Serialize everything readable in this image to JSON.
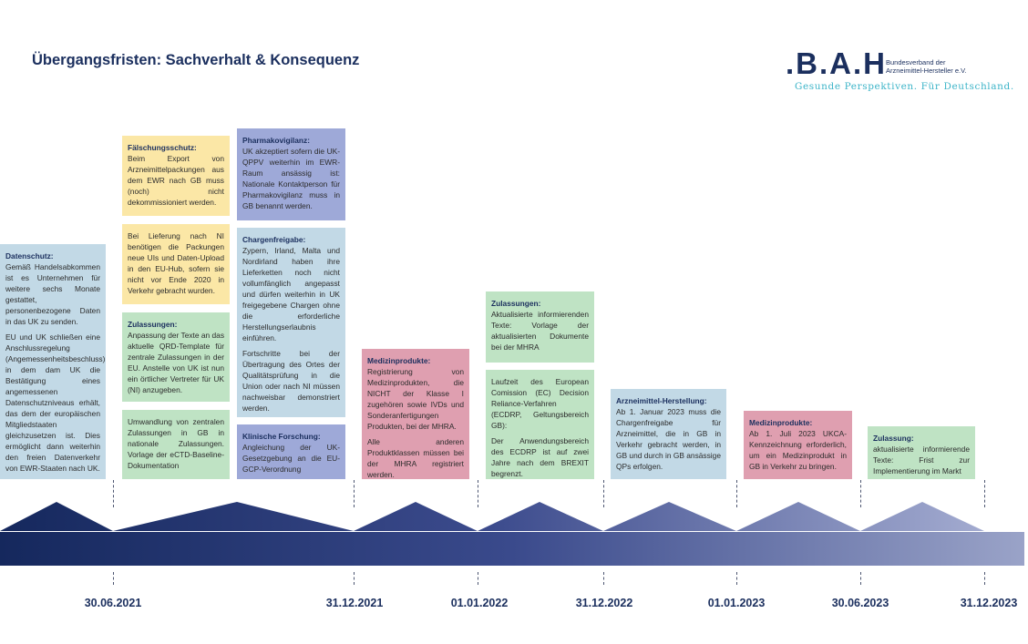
{
  "title": "Übergangsfristen: Sachverhalt & Konsequenz",
  "logo": {
    "mark": ".B.A.H",
    "org_line1": "Bundesverband der",
    "org_line2": "Arzneimittel-Hersteller e.V.",
    "claim": "Gesunde Perspektiven. Für Deutschland."
  },
  "boxes": {
    "datenschutz": {
      "heading": "Datenschutz:",
      "p1": "Gemäß Handelsabkommen ist es Unternehmen für weitere sechs Monate gestattet, personenbezogene Daten in das UK zu senden.",
      "p2": "EU und UK schließen eine Anschlussregelung (Angemessenheitsbeschluss), in dem dam UK die Bestätigung eines angemessenen Datenschutzniveaus erhält, das dem der europäischen Mitgliedstaaten gleichzusetzen ist. Dies ermöglicht dann weiterhin den freien Datenverkehr von EWR-Staaten nach UK."
    },
    "faelschungsschutz": {
      "heading": "Fälschungsschutz:",
      "p1": "Beim Export von Arzneimittelpackungen aus dem EWR nach GB muss (noch) nicht dekommissioniert werden."
    },
    "lieferung_ni": {
      "p1": "Bei Lieferung nach NI benötigen die Packungen neue UIs und Daten-Upload in den EU-Hub, sofern sie nicht vor Ende 2020 in Verkehr gebracht wurden."
    },
    "zulassungen_2021": {
      "heading": "Zulassungen:",
      "p1": "Anpassung der Texte an das aktuelle QRD-Template für zentrale Zulassungen in der EU. Anstelle von UK ist nun ein örtlicher Vertreter für UK (NI) anzugeben."
    },
    "umwandlung": {
      "p1": "Umwandlung von zentralen Zulassungen in GB in nationale Zulassungen. Vorlage der eCTD-Baseline-Dokumentation"
    },
    "pharmakovigilanz": {
      "heading": "Pharmakovigilanz:",
      "p1": "UK akzeptiert sofern die UK-QPPV weiterhin im EWR-Raum ansässig ist: Nationale Kontaktperson für Pharmakovigilanz muss in GB benannt werden."
    },
    "chargenfreigabe": {
      "heading": "Chargenfreigabe:",
      "p1": "Zypern, Irland, Malta und Nordirland haben ihre Lieferketten noch nicht vollumfänglich angepasst und dürfen weiterhin in UK freigegebene Chargen ohne die erforderliche Herstellungserlaubnis einführen.",
      "p2": "Fortschritte bei der Übertragung des Ortes der Qualitätsprüfung in die Union oder nach NI müssen nachweisbar demonstriert werden."
    },
    "klinische_forschung": {
      "heading": "Klinische Forschung:",
      "p1": "Angleichung der UK-Gesetzgebung an die EU-GCP-Verordnung"
    },
    "medizinprodukte_2022": {
      "heading": "Medizinprodukte:",
      "p1": "Registrierung von Medizinprodukten, die NICHT der Klasse I zugehören sowie IVDs und Sonderanfertigungen Produkten, bei der MHRA.",
      "p2": "Alle anderen Produktklassen müssen bei der MHRA registriert werden."
    },
    "zulassungen_2022": {
      "heading": "Zulassungen:",
      "p1": "Aktualisierte informierenden Texte: Vorlage der aktualisierten Dokumente bei der MHRA"
    },
    "ecdrp": {
      "p1": "Laufzeit des European Comission (EC) Decision Reliance-Verfahren (ECDRP, Geltungsbereich GB):",
      "p2": "Der Anwendungsbereich des ECDRP ist auf zwei Jahre nach dem BREXIT begrenzt."
    },
    "arzneimittel_herstellung": {
      "heading": "Arzneimittel-Herstellung:",
      "p1": "Ab 1. Januar 2023 muss die Chargenfreigabe für Arzneimittel, die in GB in Verkehr gebracht werden, in GB und durch in GB ansässige QPs erfolgen."
    },
    "medizinprodukte_2023": {
      "heading": "Medizinprodukte:",
      "p1": "Ab 1. Juli 2023 UKCA-Kennzeichnung erforderlich, um ein Medizinprodukt in GB in Verkehr zu bringen."
    },
    "zulassung_2023": {
      "heading": "Zulassung:",
      "p1": "aktualisierte informierende Texte: Frist zur Implementierung im Markt"
    }
  },
  "dates": [
    "30.06.2021",
    "31.12.2021",
    "01.01.2022",
    "31.12.2022",
    "01.01.2023",
    "30.06.2023",
    "31.12.2023"
  ],
  "colors": {
    "navy": "#1b2f5e",
    "accent": "#3cb4c8",
    "yellow": "#fbe7a6",
    "green": "#bfe3c4",
    "blue": "#c2d9e6",
    "violet": "#9ea9d8",
    "red": "#df9fb0"
  }
}
